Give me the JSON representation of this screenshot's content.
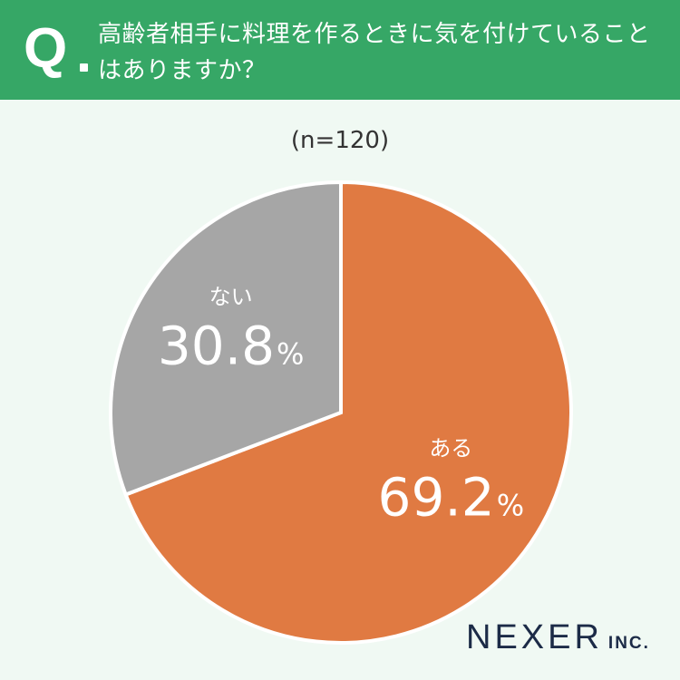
{
  "header": {
    "q_mark": "Q",
    "question": "高齢者相手に料理を作るときに気を付けていることはありますか？",
    "background": "#36a766"
  },
  "sample_size": "(n=120)",
  "chart_data": {
    "type": "pie",
    "start": "12 o'clock, clockwise",
    "slices": [
      {
        "label": "ある",
        "value": 69.2,
        "display": "69.2",
        "unit": "%",
        "color": "#e07a42"
      },
      {
        "label": "ない",
        "value": 30.8,
        "display": "30.8",
        "unit": "%",
        "color": "#a6a6a6"
      }
    ],
    "separator_color": "#ffffff"
  },
  "logo": {
    "main": "NEXER",
    "sub": "INC."
  }
}
